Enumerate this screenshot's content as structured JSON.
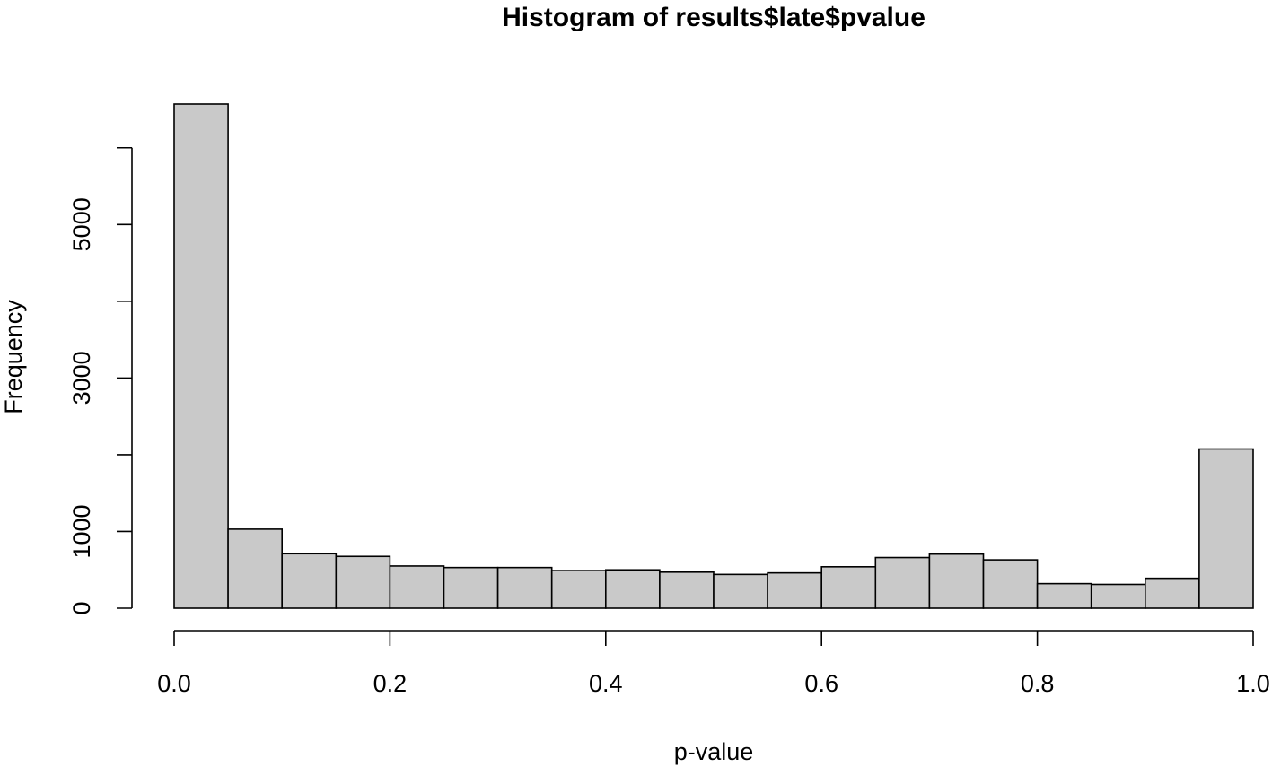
{
  "chart_data": {
    "type": "bar",
    "title": "Histogram of results$late$pvalue",
    "xlabel": "p-value",
    "ylabel": "Frequency",
    "bin_edges": [
      0.0,
      0.05,
      0.1,
      0.15,
      0.2,
      0.25,
      0.3,
      0.35,
      0.4,
      0.45,
      0.5,
      0.55,
      0.6,
      0.65,
      0.7,
      0.75,
      0.8,
      0.85,
      0.9,
      0.95,
      1.0
    ],
    "values": [
      6570,
      1030,
      710,
      675,
      550,
      530,
      530,
      490,
      500,
      470,
      440,
      460,
      540,
      660,
      705,
      630,
      320,
      310,
      390,
      2075
    ],
    "xlim": [
      0.0,
      1.0
    ],
    "ylim": [
      0,
      6570
    ],
    "x_ticks": [
      {
        "value": 0.0,
        "label": "0.0"
      },
      {
        "value": 0.2,
        "label": "0.2"
      },
      {
        "value": 0.4,
        "label": "0.4"
      },
      {
        "value": 0.6,
        "label": "0.6"
      },
      {
        "value": 0.8,
        "label": "0.8"
      },
      {
        "value": 1.0,
        "label": "1.0"
      }
    ],
    "y_ticks": [
      {
        "value": 0,
        "label": "0"
      },
      {
        "value": 1000,
        "label": "1000"
      },
      {
        "value": 2000,
        "label": ""
      },
      {
        "value": 3000,
        "label": "3000"
      },
      {
        "value": 4000,
        "label": ""
      },
      {
        "value": 5000,
        "label": "5000"
      },
      {
        "value": 6000,
        "label": ""
      }
    ],
    "grid": false,
    "bar_color": "#c9c9c9",
    "edge_color": "#000000"
  }
}
